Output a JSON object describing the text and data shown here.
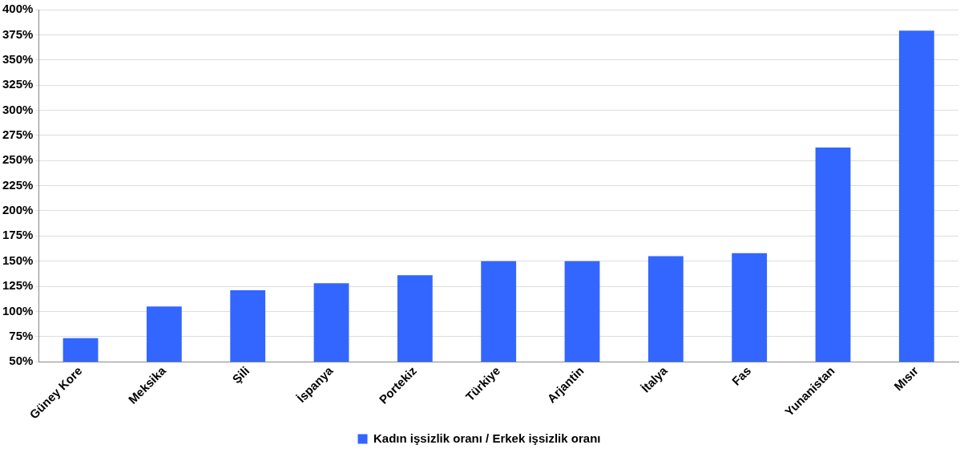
{
  "chart_data": {
    "type": "bar",
    "categories": [
      "Güney Kore",
      "Meksika",
      "Şili",
      "İspanya",
      "Portekiz",
      "Türkiye",
      "Arjantin",
      "İtalya",
      "Fas",
      "Yunanistan",
      "Mısır"
    ],
    "series": [
      {
        "name": "Kadın işsizlik oranı / Erkek işsizlik oranı",
        "color": "#3366ff",
        "values": [
          73.5,
          105,
          121,
          128,
          136,
          150,
          150,
          155,
          158,
          263,
          379
        ]
      }
    ],
    "ylim": [
      50,
      400
    ],
    "yticks": [
      {
        "value": 50,
        "label": "50%"
      },
      {
        "value": 75,
        "label": "75%"
      },
      {
        "value": 100,
        "label": "100%"
      },
      {
        "value": 125,
        "label": "125%"
      },
      {
        "value": 150,
        "label": "150%"
      },
      {
        "value": 175,
        "label": "175%"
      },
      {
        "value": 200,
        "label": "200%"
      },
      {
        "value": 225,
        "label": "225%"
      },
      {
        "value": 250,
        "label": "250%"
      },
      {
        "value": 275,
        "label": "275%"
      },
      {
        "value": 300,
        "label": "300%"
      },
      {
        "value": 325,
        "label": "325%"
      },
      {
        "value": 350,
        "label": "350%"
      },
      {
        "value": 375,
        "label": "375%"
      },
      {
        "value": 400,
        "label": "400%"
      }
    ],
    "grid": "y",
    "legend": "bottom"
  }
}
